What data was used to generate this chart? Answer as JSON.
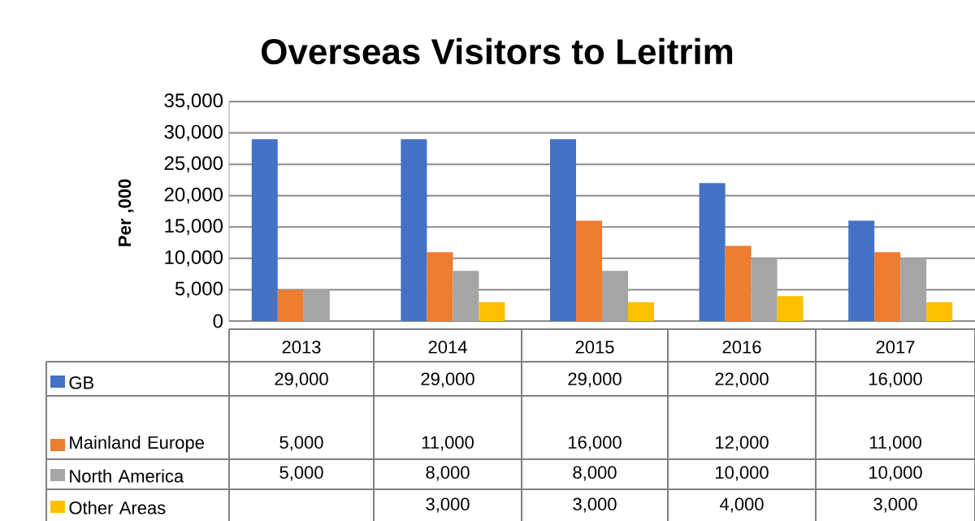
{
  "chart_data": {
    "type": "bar",
    "title": "Overseas Visitors to Leitrim",
    "ylabel": "Per    ,000",
    "categories": [
      "2013",
      "2014",
      "2015",
      "2016",
      "2017"
    ],
    "series": [
      {
        "name": "GB",
        "color": "#4472c4",
        "values": [
          29000,
          29000,
          29000,
          22000,
          16000
        ],
        "value_labels": [
          "29,000",
          "29,000",
          "29,000",
          "22,000",
          "16,000"
        ]
      },
      {
        "name": "Mainland Europe",
        "color": "#ed7d31",
        "values": [
          5000,
          11000,
          16000,
          12000,
          11000
        ],
        "value_labels": [
          "5,000",
          "11,000",
          "16,000",
          "12,000",
          "11,000"
        ]
      },
      {
        "name": "North America",
        "color": "#a5a5a5",
        "values": [
          5000,
          8000,
          8000,
          10000,
          10000
        ],
        "value_labels": [
          "5,000",
          "8,000",
          "8,000",
          "10,000",
          "10,000"
        ]
      },
      {
        "name": "Other Areas",
        "color": "#ffc000",
        "values": [
          null,
          3000,
          3000,
          4000,
          3000
        ],
        "value_labels": [
          null,
          "3,000",
          "3,000",
          "4,000",
          "3,000"
        ]
      }
    ],
    "ylim": [
      0,
      35000
    ],
    "yticks": [
      {
        "value": 0,
        "label": "0"
      },
      {
        "value": 5000,
        "label": "5,000"
      },
      {
        "value": 10000,
        "label": "10,000"
      },
      {
        "value": 15000,
        "label": "15,000"
      },
      {
        "value": 20000,
        "label": "20,000"
      },
      {
        "value": 25000,
        "label": "25,000"
      },
      {
        "value": 30000,
        "label": "30,000"
      },
      {
        "value": 35000,
        "label": "35,000"
      }
    ],
    "grid": "y",
    "legend": "bottom left"
  }
}
